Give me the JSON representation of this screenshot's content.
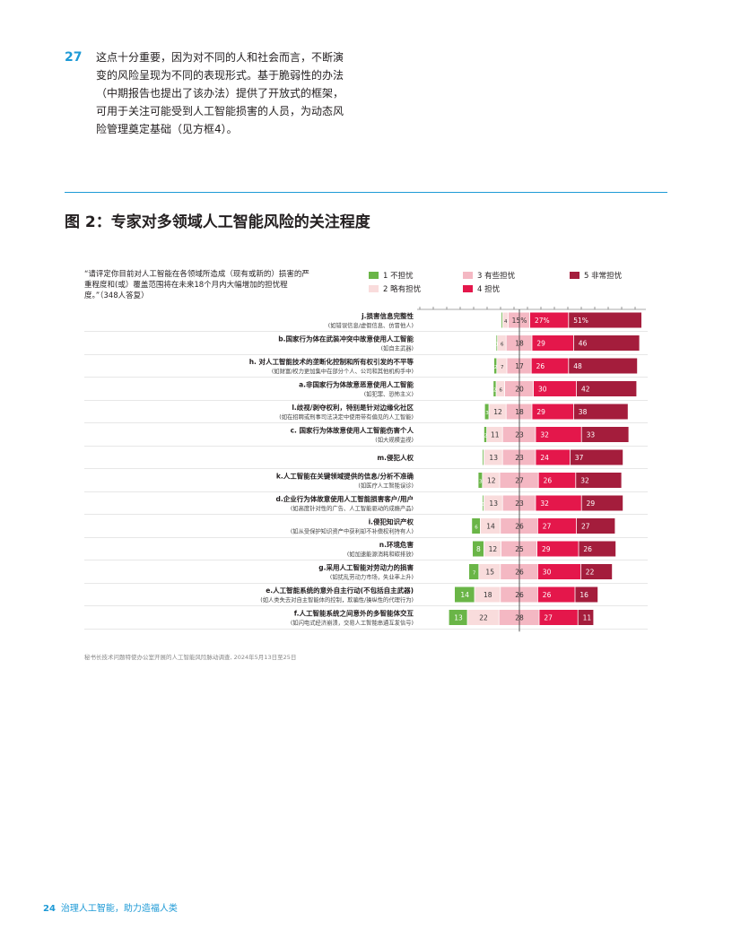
{
  "paragraph": {
    "number": "27",
    "lines": [
      "这点十分重要，因为对不同的人和社会而言，不断演",
      "变的风险呈现为不同的表现形式。基于脆弱性的办法",
      "（中期报告也提出了该办法）提供了开放式的框架，",
      "可用于关注可能受到人工智能损害的人员，为动态风",
      "险管理奠定基础（见方框4）。"
    ]
  },
  "figure_title": "图 2：专家对多领域人工智能风险的关注程度",
  "question_lines": [
    "“请评定你目前对人工智能在各领域所造成（现有或新的）损害的严",
    "重程度和(或）覆盖范围将在未来18个月内大幅增加的担忧程",
    "度。”（348人答复）"
  ],
  "source": "秘书长技术问题特使办公室开展的人工智能风险脉动调查, 2024年5月13日至25日",
  "footer": {
    "page": "24",
    "text": "治理人工智能，助力造福人类"
  },
  "chart_data": {
    "type": "bar",
    "stacked": true,
    "diverging": true,
    "legend": [
      {
        "name": "1 不担忧",
        "color": "#6ab547"
      },
      {
        "name": "2 略有担忧",
        "color": "#f9dcdc"
      },
      {
        "name": "3 有些担忧",
        "color": "#f4b8c3"
      },
      {
        "name": "4 担忧",
        "color": "#e4174b"
      },
      {
        "name": "5 非常担忧",
        "color": "#a41d3c"
      }
    ],
    "rows": [
      {
        "title": "j.损害信息完整性",
        "sub": "(如错误信息/虚假信息、仿冒他人)",
        "values": [
          1,
          4,
          15,
          27,
          51
        ],
        "labels": [
          "",
          "4",
          "15%",
          "27%",
          "51%"
        ]
      },
      {
        "title": "b.国家行为体在武装冲突中故意使用人工智能",
        "sub": "(如自主武器)",
        "values": [
          1,
          6,
          18,
          29,
          46
        ],
        "labels": [
          "1",
          "6",
          "18",
          "29",
          "46"
        ]
      },
      {
        "title": "h. 对人工智能技术的垄断化控制和所有权引发的不平等",
        "sub": "(如财富/权力更加集中在部分个人、公司和其他机构手中)",
        "values": [
          2,
          7,
          17,
          26,
          48
        ],
        "labels": [
          "2",
          "7",
          "17",
          "26",
          "48"
        ]
      },
      {
        "title": "a.非国家行为体故意恶意使用人工智能",
        "sub": "(如犯罪、恐怖主义)",
        "values": [
          2,
          6,
          20,
          30,
          42
        ],
        "labels": [
          "2",
          "6",
          "20",
          "30",
          "42"
        ]
      },
      {
        "title": "l.歧视/剥夺权利，特别是针对边缘化社区",
        "sub": "(如在招聘或刑事司法决定中使用带有偏见的人工智能)",
        "values": [
          3,
          12,
          18,
          29,
          38
        ],
        "labels": [
          "3",
          "12",
          "18",
          "29",
          "38"
        ]
      },
      {
        "title": "c. 国家行为体故意使用人工智能伤害个人",
        "sub": "(如大规模监视)",
        "values": [
          2,
          11,
          23,
          32,
          33
        ],
        "labels": [
          "2",
          "11",
          "23",
          "32",
          "33"
        ]
      },
      {
        "title": "m.侵犯人权",
        "sub": "",
        "values": [
          1,
          13,
          23,
          24,
          37
        ],
        "labels": [
          "",
          "13",
          "23",
          "24",
          "37"
        ]
      },
      {
        "title": "k.人工智能在关键领域提供的信息/分析不准确",
        "sub": "(如医疗人工智能误诊)",
        "values": [
          3,
          12,
          27,
          26,
          32
        ],
        "labels": [
          "3",
          "12",
          "27",
          "26",
          "32"
        ]
      },
      {
        "title": "d.企业行为体故意使用人工智能损害客户/用户",
        "sub": "(如高度针对性的广告、人工智能驱动的成瘾产品)",
        "values": [
          1,
          13,
          23,
          32,
          29
        ],
        "labels": [
          "1",
          "13",
          "23",
          "32",
          "29"
        ]
      },
      {
        "title": "i.侵犯知识产权",
        "sub": "(如从受保护知识资产中获利却不补偿权利持有人)",
        "values": [
          6,
          14,
          26,
          27,
          27
        ],
        "labels": [
          "6",
          "14",
          "26",
          "27",
          "27"
        ]
      },
      {
        "title": "n.环境危害",
        "sub": "(如加速能源消耗和碳排放)",
        "values": [
          8,
          12,
          25,
          29,
          26
        ],
        "labels": [
          "8",
          "12",
          "25",
          "29",
          "26"
        ]
      },
      {
        "title": "g.采用人工智能对劳动力的损害",
        "sub": "(如扰乱劳动力市场，失业率上升)",
        "values": [
          7,
          15,
          26,
          30,
          22
        ],
        "labels": [
          "7",
          "15",
          "26",
          "30",
          "22"
        ]
      },
      {
        "title": "e.人工智能系统的意外自主行动(不包括自主武器)",
        "sub": "(如人类失去对自主智能体的控制，欺骗性/操纵性的代理行为)",
        "values": [
          14,
          18,
          26,
          26,
          16
        ],
        "labels": [
          "14",
          "18",
          "26",
          "26",
          "16"
        ]
      },
      {
        "title": "f.人工智能系统之间意外的多智能体交互",
        "sub": "(如闪电式经济崩溃，交易人工智能串通互发信号)",
        "values": [
          13,
          22,
          28,
          27,
          11
        ],
        "labels": [
          "13",
          "22",
          "28",
          "27",
          "11"
        ]
      }
    ]
  }
}
